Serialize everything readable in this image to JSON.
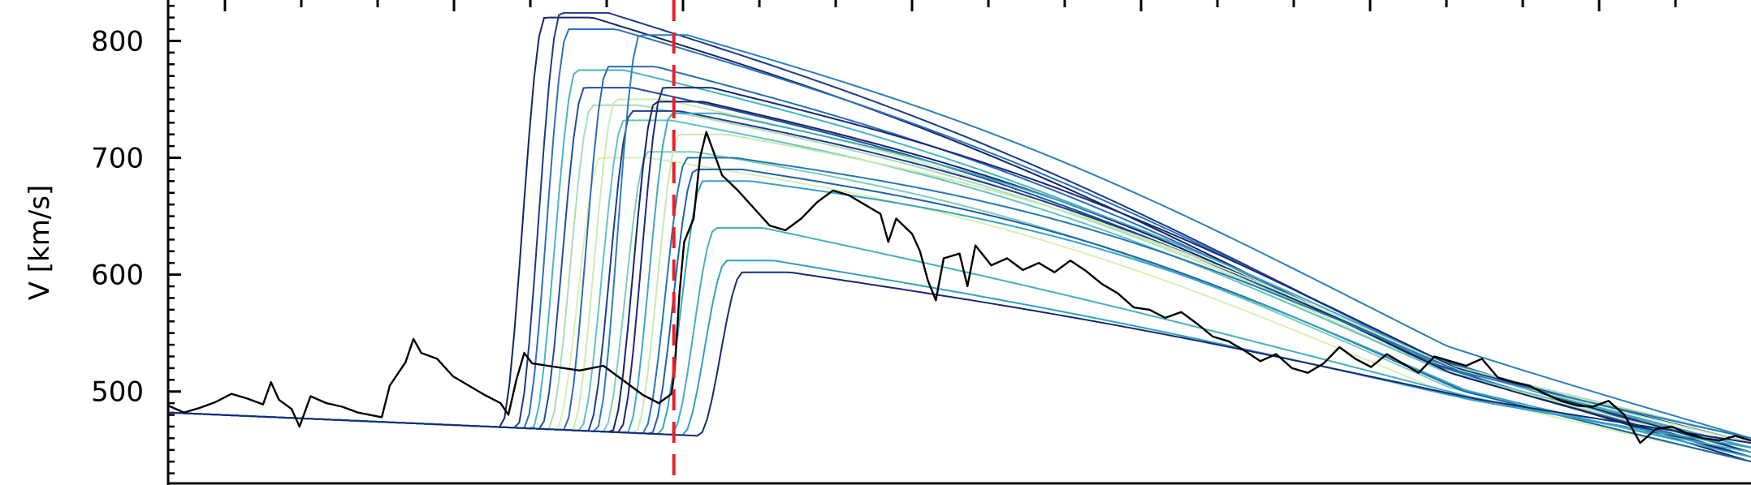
{
  "chart_data": {
    "type": "line",
    "title": "",
    "xlabel": "",
    "ylabel": "V [km/s]",
    "xlim": [
      0,
      1
    ],
    "ylim": [
      420,
      835
    ],
    "yticks": [
      500,
      600,
      700,
      800
    ],
    "yticklabels": [
      "500",
      "600",
      "700",
      "800"
    ],
    "grid": false,
    "legend": "none",
    "event_marker": {
      "x": 0.3195,
      "color": "#e8202a",
      "style": "dashed"
    },
    "observed": {
      "color": "#000000",
      "points": [
        [
          0.0,
          488
        ],
        [
          0.01,
          482
        ],
        [
          0.02,
          486
        ],
        [
          0.03,
          491
        ],
        [
          0.04,
          498
        ],
        [
          0.05,
          494
        ],
        [
          0.06,
          489
        ],
        [
          0.065,
          508
        ],
        [
          0.07,
          493
        ],
        [
          0.078,
          485
        ],
        [
          0.083,
          470
        ],
        [
          0.09,
          496
        ],
        [
          0.1,
          490
        ],
        [
          0.11,
          487
        ],
        [
          0.12,
          482
        ],
        [
          0.135,
          478
        ],
        [
          0.14,
          505
        ],
        [
          0.15,
          525
        ],
        [
          0.155,
          545
        ],
        [
          0.16,
          533
        ],
        [
          0.17,
          528
        ],
        [
          0.18,
          513
        ],
        [
          0.19,
          505
        ],
        [
          0.2,
          497
        ],
        [
          0.21,
          490
        ],
        [
          0.215,
          480
        ],
        [
          0.22,
          510
        ],
        [
          0.225,
          533
        ],
        [
          0.23,
          524
        ],
        [
          0.245,
          521
        ],
        [
          0.26,
          518
        ],
        [
          0.275,
          522
        ],
        [
          0.285,
          512
        ],
        [
          0.3,
          497
        ],
        [
          0.31,
          490
        ],
        [
          0.318,
          498
        ],
        [
          0.32,
          518
        ],
        [
          0.323,
          583
        ],
        [
          0.326,
          628
        ],
        [
          0.332,
          648
        ],
        [
          0.336,
          700
        ],
        [
          0.34,
          722
        ],
        [
          0.35,
          685
        ],
        [
          0.36,
          672
        ],
        [
          0.37,
          657
        ],
        [
          0.38,
          642
        ],
        [
          0.39,
          638
        ],
        [
          0.4,
          648
        ],
        [
          0.41,
          662
        ],
        [
          0.42,
          672
        ],
        [
          0.43,
          668
        ],
        [
          0.44,
          660
        ],
        [
          0.45,
          652
        ],
        [
          0.455,
          628
        ],
        [
          0.46,
          648
        ],
        [
          0.47,
          635
        ],
        [
          0.475,
          620
        ],
        [
          0.48,
          595
        ],
        [
          0.485,
          578
        ],
        [
          0.49,
          614
        ],
        [
          0.5,
          618
        ],
        [
          0.505,
          590
        ],
        [
          0.51,
          625
        ],
        [
          0.52,
          608
        ],
        [
          0.53,
          614
        ],
        [
          0.54,
          604
        ],
        [
          0.55,
          610
        ],
        [
          0.56,
          602
        ],
        [
          0.57,
          612
        ],
        [
          0.58,
          603
        ],
        [
          0.59,
          592
        ],
        [
          0.6,
          584
        ],
        [
          0.61,
          572
        ],
        [
          0.62,
          570
        ],
        [
          0.63,
          563
        ],
        [
          0.64,
          568
        ],
        [
          0.65,
          558
        ],
        [
          0.66,
          547
        ],
        [
          0.67,
          543
        ],
        [
          0.68,
          535
        ],
        [
          0.69,
          526
        ],
        [
          0.7,
          532
        ],
        [
          0.71,
          520
        ],
        [
          0.72,
          516
        ],
        [
          0.73,
          524
        ],
        [
          0.74,
          538
        ],
        [
          0.75,
          528
        ],
        [
          0.76,
          521
        ],
        [
          0.77,
          532
        ],
        [
          0.78,
          524
        ],
        [
          0.79,
          516
        ],
        [
          0.8,
          530
        ],
        [
          0.81,
          526
        ],
        [
          0.82,
          522
        ],
        [
          0.83,
          528
        ],
        [
          0.84,
          512
        ],
        [
          0.85,
          508
        ],
        [
          0.86,
          505
        ],
        [
          0.87,
          498
        ],
        [
          0.88,
          492
        ],
        [
          0.89,
          488
        ],
        [
          0.9,
          487
        ],
        [
          0.91,
          492
        ],
        [
          0.92,
          480
        ],
        [
          0.93,
          456
        ],
        [
          0.94,
          468
        ],
        [
          0.95,
          470
        ],
        [
          0.96,
          464
        ],
        [
          0.97,
          460
        ],
        [
          0.98,
          458
        ],
        [
          0.99,
          462
        ],
        [
          1.0,
          458
        ]
      ]
    },
    "ensemble": {
      "baseline_start": 482,
      "baseline_end": 463,
      "members": [
        {
          "onset": 0.21,
          "peak": 820,
          "color": "#152567"
        },
        {
          "onset": 0.22,
          "peak": 824,
          "color": "#1d3a8a"
        },
        {
          "onset": 0.225,
          "peak": 810,
          "color": "#2b72b8"
        },
        {
          "onset": 0.23,
          "peak": 775,
          "color": "#46b5c4"
        },
        {
          "onset": 0.235,
          "peak": 760,
          "color": "#1f4f9c"
        },
        {
          "onset": 0.24,
          "peak": 745,
          "color": "#a9dcb7"
        },
        {
          "onset": 0.245,
          "peak": 700,
          "color": "#d9f0b3"
        },
        {
          "onset": 0.25,
          "peak": 778,
          "color": "#2a6db3"
        },
        {
          "onset": 0.255,
          "peak": 750,
          "color": "#cdebb4"
        },
        {
          "onset": 0.26,
          "peak": 732,
          "color": "#63c3bf"
        },
        {
          "onset": 0.265,
          "peak": 740,
          "color": "#203b8d"
        },
        {
          "onset": 0.27,
          "peak": 805,
          "color": "#2c7fb8"
        },
        {
          "onset": 0.275,
          "peak": 705,
          "color": "#7fcdbb"
        },
        {
          "onset": 0.28,
          "peak": 748,
          "color": "#152567"
        },
        {
          "onset": 0.285,
          "peak": 760,
          "color": "#1b2a75"
        },
        {
          "onset": 0.29,
          "peak": 738,
          "color": "#40a6c4"
        },
        {
          "onset": 0.295,
          "peak": 720,
          "color": "#c7e9b4"
        },
        {
          "onset": 0.3,
          "peak": 700,
          "color": "#2278b5"
        },
        {
          "onset": 0.305,
          "peak": 690,
          "color": "#1e62a8"
        },
        {
          "onset": 0.31,
          "peak": 680,
          "color": "#36a2c3"
        },
        {
          "onset": 0.318,
          "peak": 640,
          "color": "#44aec4"
        },
        {
          "onset": 0.325,
          "peak": 612,
          "color": "#2ea0c0"
        },
        {
          "onset": 0.335,
          "peak": 602,
          "color": "#172a72"
        }
      ]
    }
  }
}
